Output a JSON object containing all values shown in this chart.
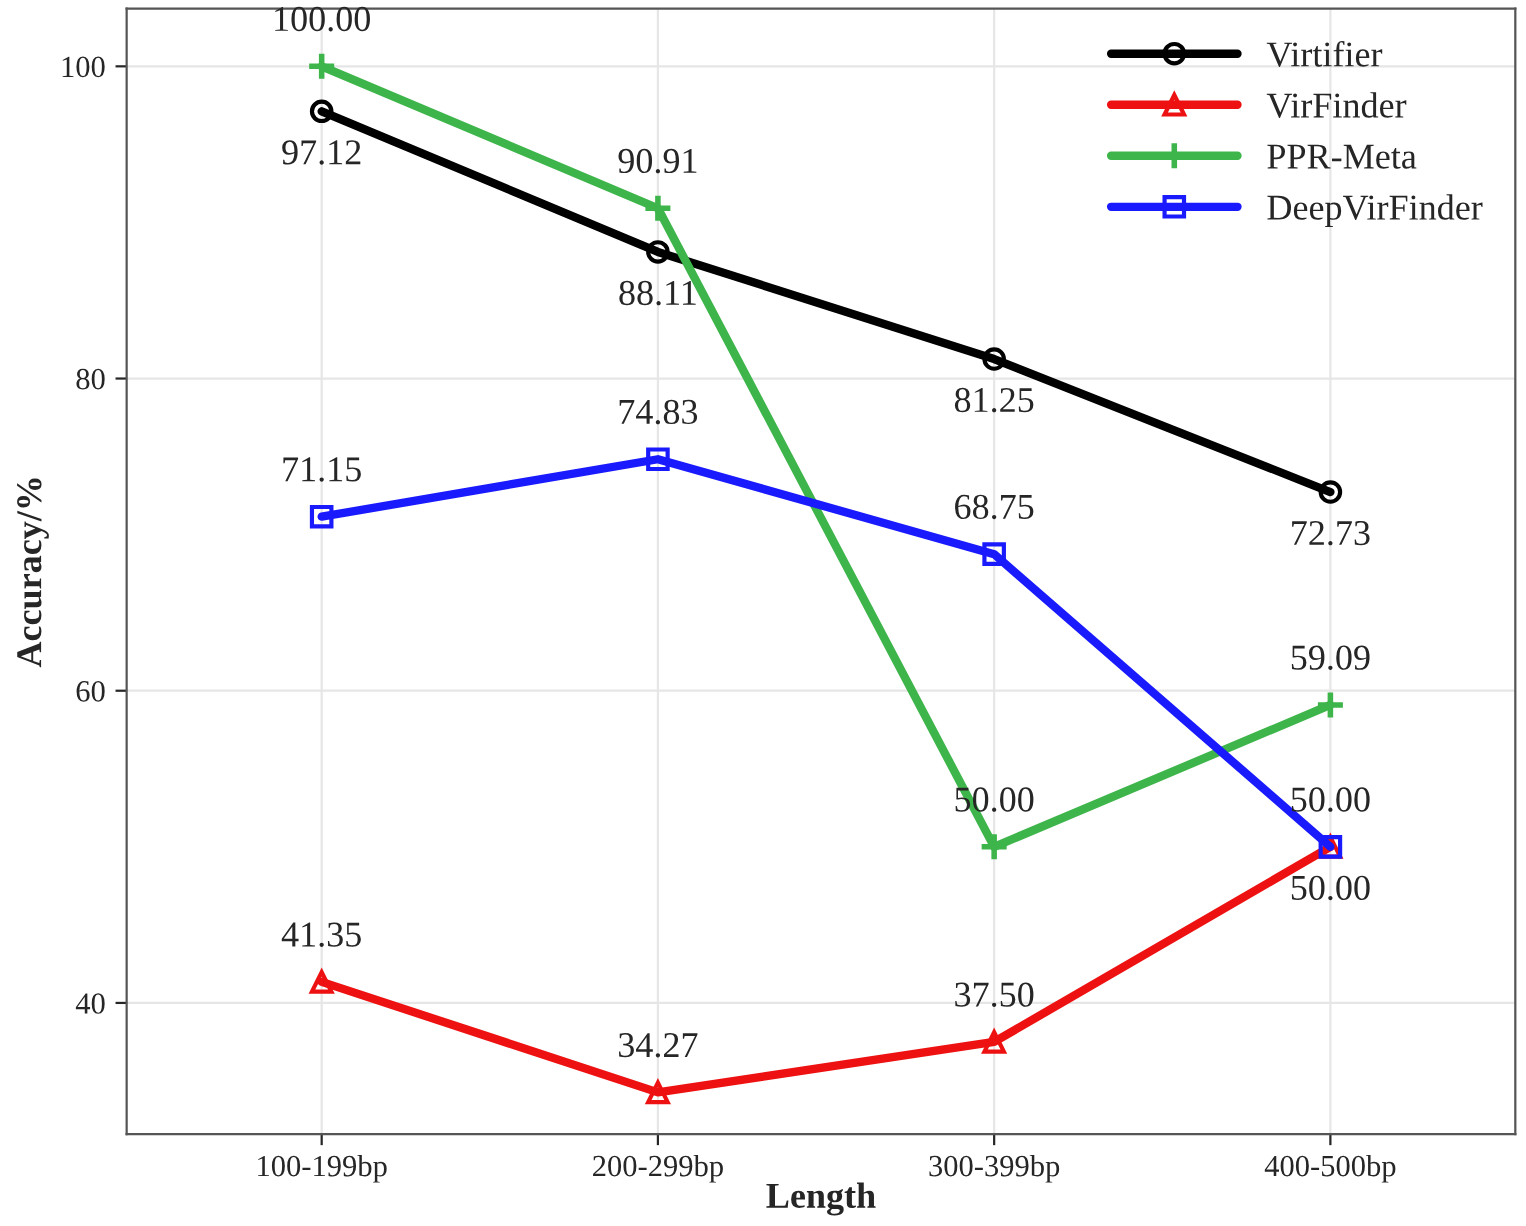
{
  "chart_data": {
    "type": "line",
    "xlabel": "Length",
    "ylabel": "Accuracy/%",
    "categories": [
      "100-199bp",
      "200-299bp",
      "300-399bp",
      "400-500bp"
    ],
    "series": [
      {
        "name": "Virtifier",
        "color": "#000000",
        "marker": "circle",
        "values": [
          97.12,
          88.11,
          81.25,
          72.73
        ],
        "value_labels": [
          "97.12",
          "88.11",
          "81.25",
          "72.73"
        ]
      },
      {
        "name": "VirFinder",
        "color": "#ee1111",
        "marker": "triangle",
        "values": [
          41.35,
          34.27,
          37.5,
          50
        ],
        "value_labels": [
          "41.35",
          "34.27",
          "37.50",
          "50.00"
        ]
      },
      {
        "name": "PPR-Meta",
        "color": "#3db54a",
        "marker": "cross",
        "values": [
          100,
          90.91,
          50,
          59.09
        ],
        "value_labels": [
          "100.00",
          "90.91",
          "50.00",
          "59.09"
        ]
      },
      {
        "name": "DeepVirFinder",
        "color": "#1a1aff",
        "marker": "square",
        "values": [
          71.15,
          74.83,
          68.75,
          50
        ],
        "value_labels": [
          "71.15",
          "74.83",
          "68.75",
          "50.00"
        ]
      }
    ],
    "ylim": [
      31.6,
      103.7
    ],
    "yticks": [
      40,
      60,
      80,
      100
    ],
    "grid": true,
    "legend": "top right"
  }
}
